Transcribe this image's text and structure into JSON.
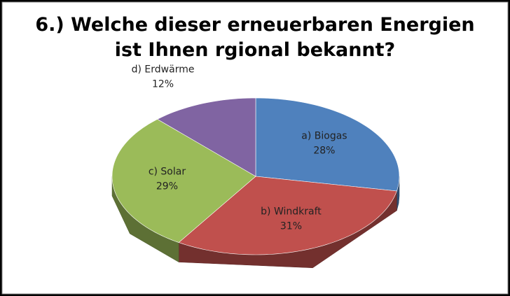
{
  "chart_data": {
    "type": "pie3d",
    "title": [
      "6.) Welche dieser erneuerbaren Energien",
      "ist Ihnen rgional bekannt?"
    ],
    "categories": [
      "a) Biogas",
      "b) Windkraft",
      "c) Solar",
      "d) Erdwärme"
    ],
    "values": [
      28,
      31,
      29,
      12
    ],
    "value_labels": [
      "28%",
      "31%",
      "29%",
      "12%"
    ],
    "colors": [
      "#4f81bd",
      "#c0504d",
      "#9bbb59",
      "#8064a2"
    ]
  }
}
